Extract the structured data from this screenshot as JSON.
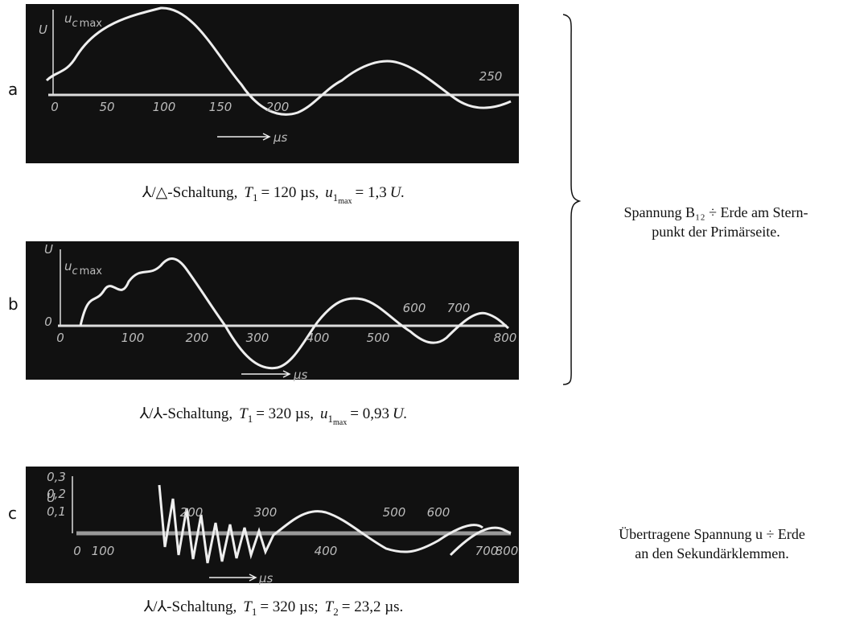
{
  "panels": [
    {
      "label": "a",
      "y_label": "U",
      "curve_symbol": "u",
      "curve_sub": "c",
      "curve_subsub": "max",
      "y_ticks": [],
      "x_ticks": [
        "0",
        "50",
        "100",
        "150",
        "200",
        "250"
      ],
      "unit": "µs",
      "caption": {
        "circuit": "⅄/△-Schaltung,",
        "t_symbol": "T",
        "t_sub": "1",
        "t_value": "= 120 µs,",
        "u_symbol": "u",
        "u_sub": "1",
        "u_subsub": "max",
        "u_value": "= 1,3",
        "u_unit": "U."
      }
    },
    {
      "label": "b",
      "y_label": "U",
      "curve_symbol": "u",
      "curve_sub": "c",
      "curve_subsub": "max",
      "y_ticks": [
        "0"
      ],
      "x_ticks": [
        "0",
        "100",
        "200",
        "300",
        "400",
        "500",
        "600",
        "700",
        "800"
      ],
      "unit": "µs",
      "caption": {
        "circuit": "⅄/⅄-Schaltung,",
        "t_symbol": "T",
        "t_sub": "1",
        "t_value": "= 320 µs,",
        "u_symbol": "u",
        "u_sub": "1",
        "u_subsub": "max",
        "u_value": "= 0,93",
        "u_unit": "U."
      }
    },
    {
      "label": "c",
      "y_label": "U",
      "y_ticks": [
        "0,3",
        "0,2",
        "0,1"
      ],
      "x_ticks": [
        "0",
        "100",
        "200",
        "300",
        "400",
        "500",
        "600",
        "700",
        "800"
      ],
      "unit": "µs",
      "caption": {
        "circuit": "⅄/⅄-Schaltung,",
        "t_symbol": "T",
        "t_sub": "1",
        "t_value": "= 320 µs;",
        "t2_symbol": "T",
        "t2_sub": "2",
        "t2_value": "= 23,2 µs."
      }
    }
  ],
  "notes": [
    {
      "lines": [
        "Spannung B₁₂ ÷ Erde am Stern-",
        "punkt der Primärseite."
      ]
    },
    {
      "lines": [
        "Übertragene   Spannung u ÷ Erde",
        "an den Sekundärklemmen."
      ]
    }
  ]
}
